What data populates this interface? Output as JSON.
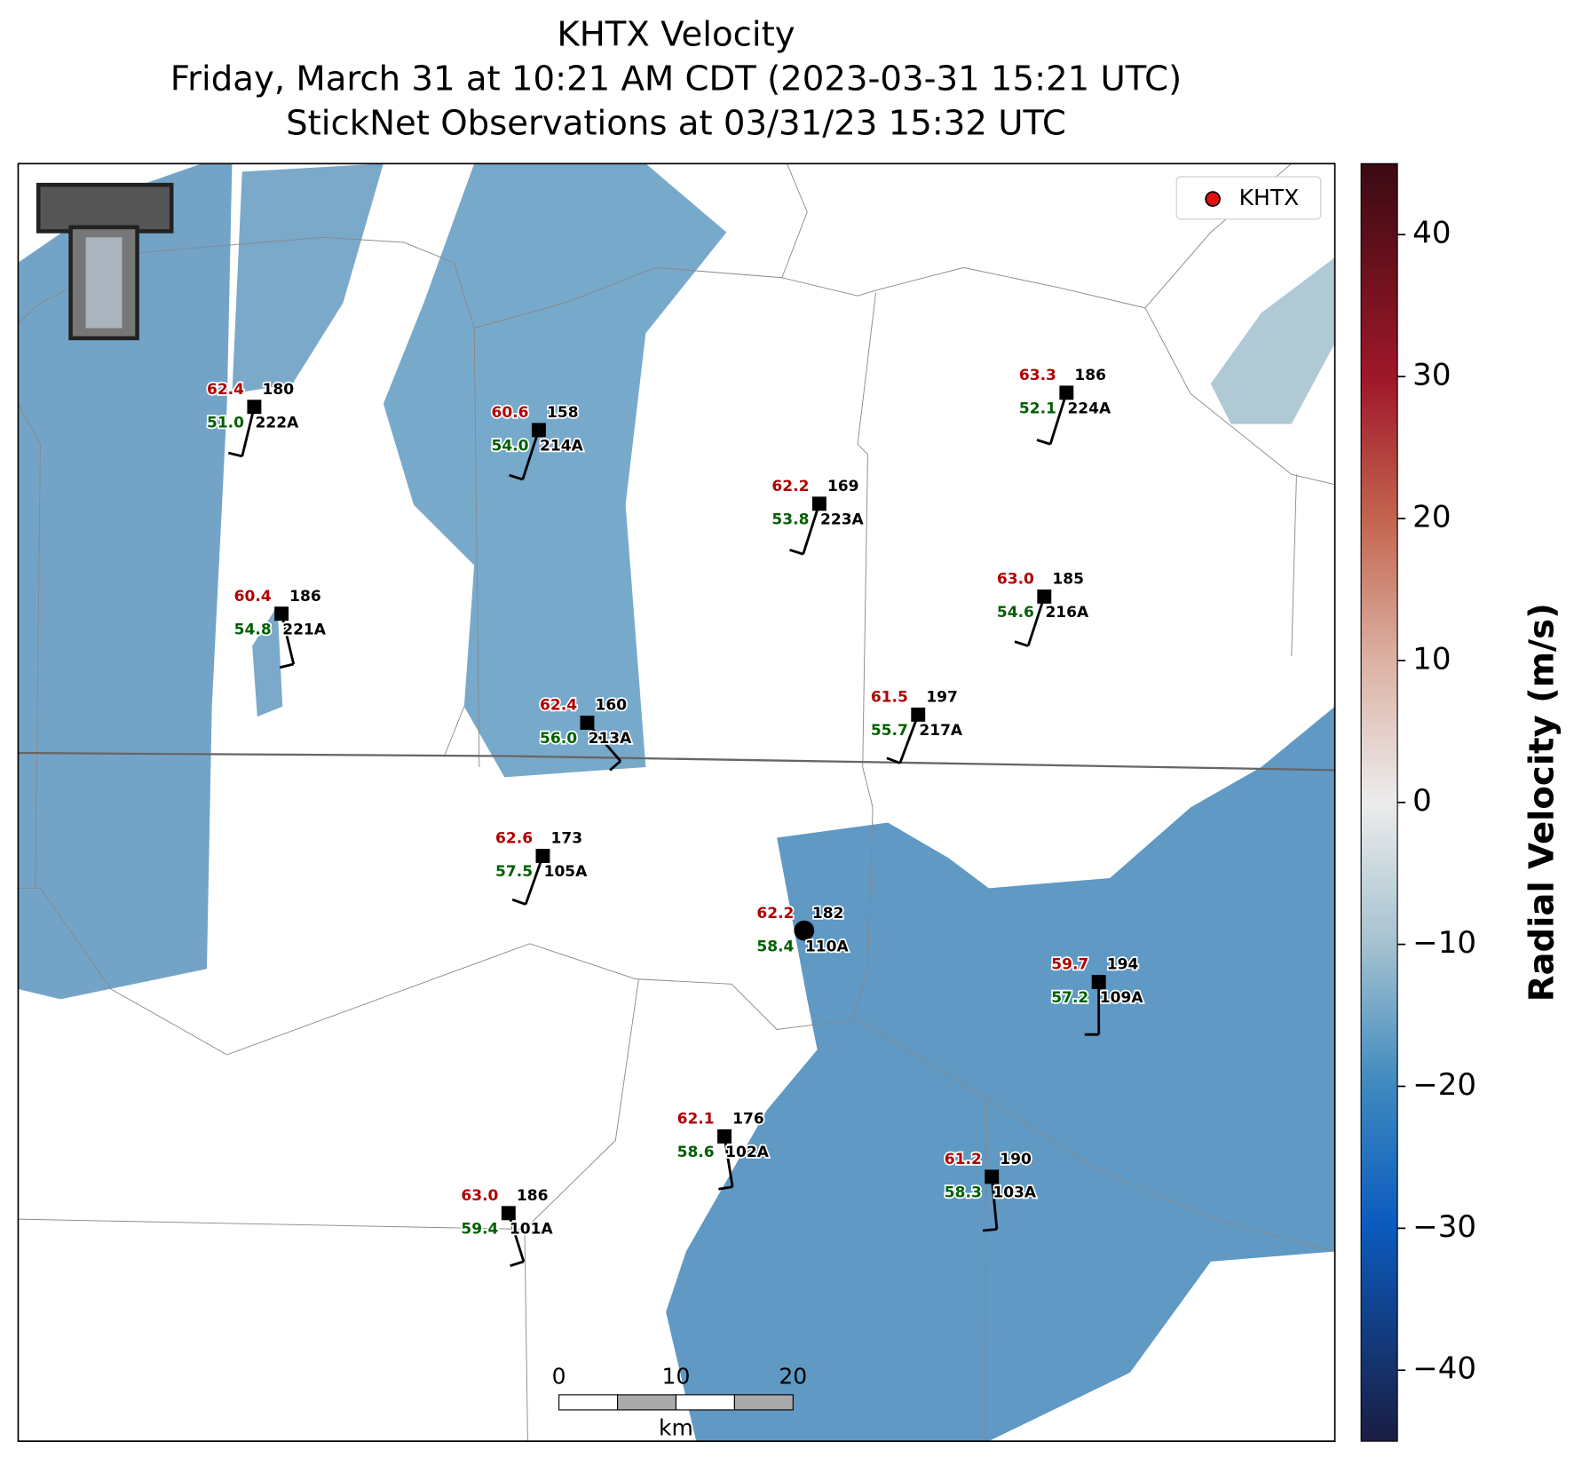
{
  "title": [
    "KHTX Velocity",
    "Friday, March 31 at 10:21 AM CDT (2023-03-31 15:21 UTC)",
    "StickNet Observations at 03/31/23 15:32 UTC"
  ],
  "legend": "KHTX",
  "colorbar": {
    "label": "Radial Velocity (m/s)",
    "lim": [
      -45,
      45
    ],
    "ticks": [
      {
        "value": -40,
        "label": "−40"
      },
      {
        "value": -30,
        "label": "−30"
      },
      {
        "value": -20,
        "label": "−20"
      },
      {
        "value": -10,
        "label": "−10"
      },
      0,
      10,
      20,
      30,
      40
    ]
  },
  "scalebar": {
    "labels": [
      "0",
      "10",
      "20"
    ],
    "unit": "km"
  },
  "stations": [
    {
      "id": "222A",
      "temp": "62.4",
      "dew": "51.0",
      "extra": "180"
    },
    {
      "id": "214A",
      "temp": "60.6",
      "dew": "54.0",
      "extra": "158"
    },
    {
      "id": "223A",
      "temp": "62.2",
      "dew": "53.8",
      "extra": "169"
    },
    {
      "id": "224A",
      "temp": "63.3",
      "dew": "52.1",
      "extra": "186"
    },
    {
      "id": "221A",
      "temp": "60.4",
      "dew": "54.8",
      "extra": "186"
    },
    {
      "id": "216A",
      "temp": "63.0",
      "dew": "54.6",
      "extra": "185"
    },
    {
      "id": "213A",
      "temp": "62.4",
      "dew": "56.0",
      "extra": "160"
    },
    {
      "id": "217A",
      "temp": "61.5",
      "dew": "55.7",
      "extra": "197"
    },
    {
      "id": "105A",
      "temp": "62.6",
      "dew": "57.5",
      "extra": "173"
    },
    {
      "id": "110A",
      "temp": "62.2",
      "dew": "58.4",
      "extra": "182"
    },
    {
      "id": "109A",
      "temp": "59.7",
      "dew": "57.2",
      "extra": "194"
    },
    {
      "id": "102A",
      "temp": "62.1",
      "dew": "58.6",
      "extra": "176"
    },
    {
      "id": "103A",
      "temp": "61.2",
      "dew": "58.3",
      "extra": "190"
    },
    {
      "id": "101A",
      "temp": "63.0",
      "dew": "59.4",
      "extra": "186"
    }
  ]
}
